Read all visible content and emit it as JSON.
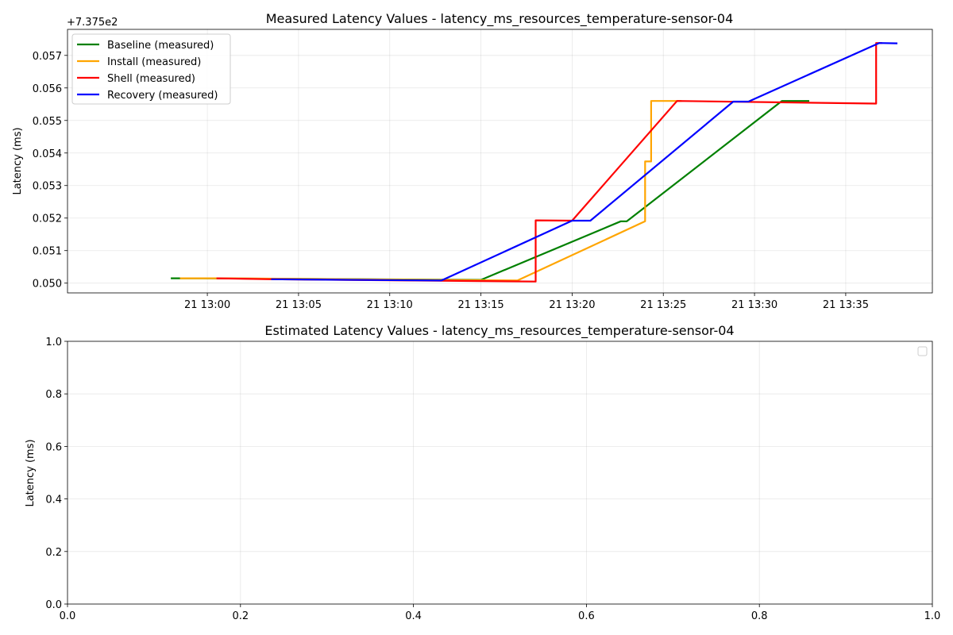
{
  "chart_data": [
    {
      "type": "line",
      "title": "Measured Latency Values - latency_ms_resources_temperature-sensor-04",
      "xlabel": "",
      "ylabel": "Latency (ms)",
      "offset_label": "+7.375e2",
      "x_ticks": [
        "21 13:00",
        "21 13:05",
        "21 13:10",
        "21 13:15",
        "21 13:20",
        "21 13:25",
        "21 13:30",
        "21 13:35"
      ],
      "y_ticks": [
        "0.050",
        "0.051",
        "0.052",
        "0.053",
        "0.054",
        "0.055",
        "0.056",
        "0.057"
      ],
      "xlim": [
        "21 12:52:20",
        "21 13:39:45"
      ],
      "ylim": [
        0.0497,
        0.0578
      ],
      "grid": true,
      "legend_position": "upper-left",
      "series": [
        {
          "name": "Baseline (measured)",
          "color": "#008000",
          "points": [
            [
              "21 12:58:00",
              0.05015
            ],
            [
              "21 12:59:00",
              0.05015
            ],
            [
              "21 13:15:00",
              0.0501
            ],
            [
              "21 13:22:40",
              0.0519
            ],
            [
              "21 13:23:00",
              0.0519
            ],
            [
              "21 13:31:30",
              0.0556
            ],
            [
              "21 13:33:00",
              0.0556
            ]
          ]
        },
        {
          "name": "Install (measured)",
          "color": "#ffa500",
          "points": [
            [
              "21 12:58:30",
              0.05015
            ],
            [
              "21 13:01:00",
              0.05015
            ],
            [
              "21 13:17:00",
              0.05008
            ],
            [
              "21 13:24:00",
              0.0519
            ],
            [
              "21 13:24:00",
              0.05374
            ],
            [
              "21 13:24:20",
              0.05374
            ],
            [
              "21 13:24:20",
              0.0556
            ],
            [
              "21 13:26:00",
              0.0556
            ]
          ]
        },
        {
          "name": "Shell (measured)",
          "color": "#ff0000",
          "points": [
            [
              "21 13:00:30",
              0.05015
            ],
            [
              "21 13:03:30",
              0.05012
            ],
            [
              "21 13:18:00",
              0.05005
            ],
            [
              "21 13:18:00",
              0.05193
            ],
            [
              "21 13:20:00",
              0.05192
            ],
            [
              "21 13:25:45",
              0.0556
            ],
            [
              "21 13:36:40",
              0.05552
            ],
            [
              "21 13:36:40",
              0.05738
            ],
            [
              "21 13:37:00",
              0.05738
            ]
          ]
        },
        {
          "name": "Recovery (measured)",
          "color": "#0000ff",
          "points": [
            [
              "21 13:03:30",
              0.05012
            ],
            [
              "21 13:12:50",
              0.05008
            ],
            [
              "21 13:20:00",
              0.05192
            ],
            [
              "21 13:21:00",
              0.05192
            ],
            [
              "21 13:28:50",
              0.05558
            ],
            [
              "21 13:29:40",
              0.05558
            ],
            [
              "21 13:36:50",
              0.05738
            ],
            [
              "21 13:37:50",
              0.05737
            ]
          ]
        }
      ]
    },
    {
      "type": "line",
      "title": "Estimated Latency Values - latency_ms_resources_temperature-sensor-04",
      "xlabel": "",
      "ylabel": "Latency (ms)",
      "x_ticks": [
        "0.0",
        "0.2",
        "0.4",
        "0.6",
        "0.8",
        "1.0"
      ],
      "y_ticks": [
        "0.0",
        "0.2",
        "0.4",
        "0.6",
        "0.8",
        "1.0"
      ],
      "xlim": [
        0,
        1
      ],
      "ylim": [
        0,
        1
      ],
      "grid": true,
      "legend_position": "upper-right",
      "series": []
    }
  ]
}
